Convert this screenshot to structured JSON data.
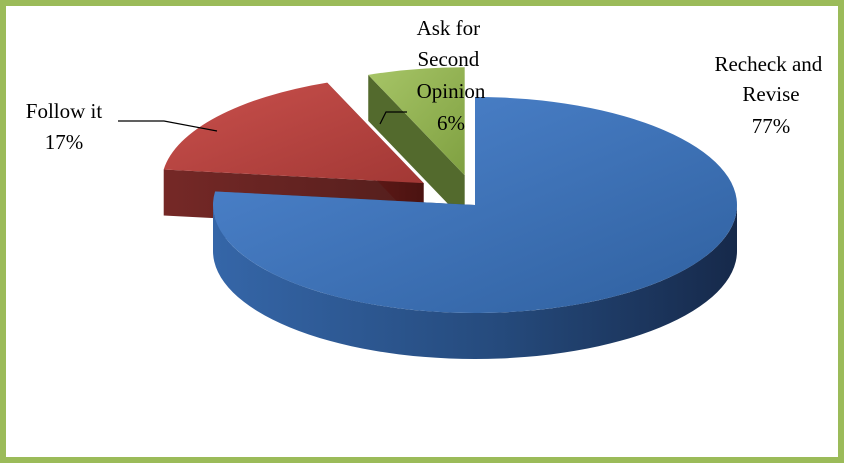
{
  "chart_data": {
    "type": "pie",
    "title": "",
    "style": "3d-exploded",
    "slices": [
      {
        "label_lines": [
          "Recheck and",
          "Revise"
        ],
        "percent_label": "77%",
        "value": 77,
        "color": "#3f76c2"
      },
      {
        "label_lines": [
          "Follow it"
        ],
        "percent_label": "17%",
        "value": 17,
        "color": "#c0504d"
      },
      {
        "label_lines": [
          "Ask for",
          "Second",
          "Opinion"
        ],
        "percent_label": "6%",
        "value": 6,
        "color": "#9bbb59"
      }
    ],
    "legend": "none",
    "frame_color": "#9bbb59"
  }
}
